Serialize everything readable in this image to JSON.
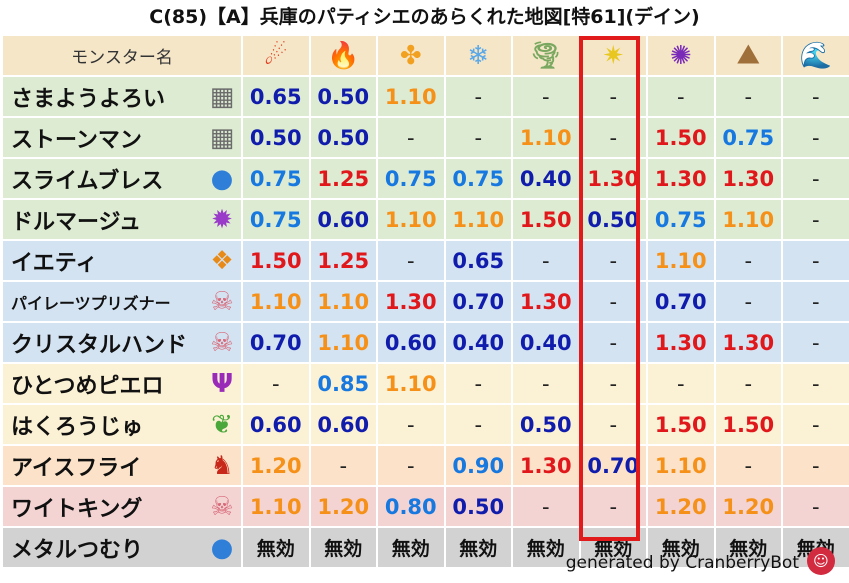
{
  "title": "C(85)【A】兵庫のパティシエのあらくれた地図[特61](デイン)",
  "header": {
    "name_label": "モンスター名",
    "elements": [
      {
        "icon": "fire-ball-icon",
        "glyph": "☄",
        "color": "#e23a1a"
      },
      {
        "icon": "flame-icon",
        "glyph": "🔥",
        "color": "#f05a1a"
      },
      {
        "icon": "wind-clover-icon",
        "glyph": "✤",
        "color": "#f2a020"
      },
      {
        "icon": "snowflake-icon",
        "glyph": "❄",
        "color": "#5aa8e8"
      },
      {
        "icon": "tornado-icon",
        "glyph": "🌪",
        "color": "#7aa860"
      },
      {
        "icon": "lightning-burst-icon",
        "glyph": "✷",
        "color": "#e8c820"
      },
      {
        "icon": "dark-swirl-icon",
        "glyph": "✺",
        "color": "#7a2ab8"
      },
      {
        "icon": "mountain-icon",
        "glyph": "⛰",
        "color": "#a0703a"
      },
      {
        "icon": "wave-icon",
        "glyph": "🌊",
        "color": "#2a78d8"
      }
    ]
  },
  "colors": {
    "red": "#e0171b",
    "orange": "#f59018",
    "blue": "#1778e0",
    "navy": "#101cab",
    "highlight": "#e11b1b"
  },
  "rows": [
    {
      "name": "さまようよろい",
      "bg": "green",
      "icon": "brick-wall-icon",
      "glyph": "▦",
      "icon_color": "#6b6b6b",
      "values": [
        {
          "v": "0.65",
          "c": "navy"
        },
        {
          "v": "0.50",
          "c": "navy"
        },
        {
          "v": "1.10",
          "c": "orange"
        },
        {
          "v": "-",
          "c": "dash"
        },
        {
          "v": "-",
          "c": "dash"
        },
        {
          "v": "-",
          "c": "dash"
        },
        {
          "v": "-",
          "c": "dash"
        },
        {
          "v": "-",
          "c": "dash"
        },
        {
          "v": "-",
          "c": "dash"
        }
      ]
    },
    {
      "name": "ストーンマン",
      "bg": "green",
      "icon": "brick-wall-icon",
      "glyph": "▦",
      "icon_color": "#6b6b6b",
      "values": [
        {
          "v": "0.50",
          "c": "navy"
        },
        {
          "v": "0.50",
          "c": "navy"
        },
        {
          "v": "-",
          "c": "dash"
        },
        {
          "v": "-",
          "c": "dash"
        },
        {
          "v": "1.10",
          "c": "orange"
        },
        {
          "v": "-",
          "c": "dash"
        },
        {
          "v": "1.50",
          "c": "red"
        },
        {
          "v": "0.75",
          "c": "blue"
        },
        {
          "v": "-",
          "c": "dash"
        }
      ]
    },
    {
      "name": "スライムブレス",
      "bg": "green",
      "icon": "slime-drop-icon",
      "glyph": "●",
      "icon_color": "#2f7fd8",
      "values": [
        {
          "v": "0.75",
          "c": "blue"
        },
        {
          "v": "1.25",
          "c": "red"
        },
        {
          "v": "0.75",
          "c": "blue"
        },
        {
          "v": "0.75",
          "c": "blue"
        },
        {
          "v": "0.40",
          "c": "navy"
        },
        {
          "v": "1.30",
          "c": "red"
        },
        {
          "v": "1.30",
          "c": "red"
        },
        {
          "v": "1.30",
          "c": "red"
        },
        {
          "v": "-",
          "c": "dash"
        }
      ]
    },
    {
      "name": "ドルマージュ",
      "bg": "green",
      "icon": "purple-splat-icon",
      "glyph": "✹",
      "icon_color": "#9a3ac8",
      "values": [
        {
          "v": "0.75",
          "c": "blue"
        },
        {
          "v": "0.60",
          "c": "navy"
        },
        {
          "v": "1.10",
          "c": "orange"
        },
        {
          "v": "1.10",
          "c": "orange"
        },
        {
          "v": "1.50",
          "c": "red"
        },
        {
          "v": "0.50",
          "c": "navy"
        },
        {
          "v": "0.75",
          "c": "blue"
        },
        {
          "v": "1.10",
          "c": "orange"
        },
        {
          "v": "-",
          "c": "dash"
        }
      ]
    },
    {
      "name": "イエティ",
      "bg": "blue",
      "icon": "paw-icon",
      "glyph": "❖",
      "icon_color": "#e88a18",
      "values": [
        {
          "v": "1.50",
          "c": "red"
        },
        {
          "v": "1.25",
          "c": "red"
        },
        {
          "v": "-",
          "c": "dash"
        },
        {
          "v": "0.65",
          "c": "navy"
        },
        {
          "v": "-",
          "c": "dash"
        },
        {
          "v": "-",
          "c": "dash"
        },
        {
          "v": "1.10",
          "c": "orange"
        },
        {
          "v": "-",
          "c": "dash"
        },
        {
          "v": "-",
          "c": "dash"
        }
      ]
    },
    {
      "name": "パイレーツプリズナー",
      "bg": "blue",
      "icon": "skull-icon",
      "glyph": "☠",
      "icon_color": "#d86878",
      "small": true,
      "values": [
        {
          "v": "1.10",
          "c": "orange"
        },
        {
          "v": "1.10",
          "c": "orange"
        },
        {
          "v": "1.30",
          "c": "red"
        },
        {
          "v": "0.70",
          "c": "navy"
        },
        {
          "v": "1.30",
          "c": "red"
        },
        {
          "v": "-",
          "c": "dash"
        },
        {
          "v": "0.70",
          "c": "navy"
        },
        {
          "v": "-",
          "c": "dash"
        },
        {
          "v": "-",
          "c": "dash"
        }
      ]
    },
    {
      "name": "クリスタルハンド",
      "bg": "blue",
      "icon": "skull-icon",
      "glyph": "☠",
      "icon_color": "#d86878",
      "values": [
        {
          "v": "0.70",
          "c": "navy"
        },
        {
          "v": "1.10",
          "c": "orange"
        },
        {
          "v": "0.60",
          "c": "navy"
        },
        {
          "v": "0.40",
          "c": "navy"
        },
        {
          "v": "0.40",
          "c": "navy"
        },
        {
          "v": "-",
          "c": "dash"
        },
        {
          "v": "1.30",
          "c": "red"
        },
        {
          "v": "1.30",
          "c": "red"
        },
        {
          "v": "-",
          "c": "dash"
        }
      ]
    },
    {
      "name": "ひとつめピエロ",
      "bg": "yellow",
      "icon": "trident-icon",
      "glyph": "Ψ",
      "icon_color": "#9a2ab8",
      "values": [
        {
          "v": "-",
          "c": "dash"
        },
        {
          "v": "0.85",
          "c": "blue"
        },
        {
          "v": "1.10",
          "c": "orange"
        },
        {
          "v": "-",
          "c": "dash"
        },
        {
          "v": "-",
          "c": "dash"
        },
        {
          "v": "-",
          "c": "dash"
        },
        {
          "v": "-",
          "c": "dash"
        },
        {
          "v": "-",
          "c": "dash"
        },
        {
          "v": "-",
          "c": "dash"
        }
      ]
    },
    {
      "name": "はくろうじゅ",
      "bg": "yellow",
      "icon": "leaf-icon",
      "glyph": "❦",
      "icon_color": "#4aa83a",
      "values": [
        {
          "v": "0.60",
          "c": "navy"
        },
        {
          "v": "0.60",
          "c": "navy"
        },
        {
          "v": "-",
          "c": "dash"
        },
        {
          "v": "-",
          "c": "dash"
        },
        {
          "v": "0.50",
          "c": "navy"
        },
        {
          "v": "-",
          "c": "dash"
        },
        {
          "v": "1.50",
          "c": "red"
        },
        {
          "v": "1.50",
          "c": "red"
        },
        {
          "v": "-",
          "c": "dash"
        }
      ]
    },
    {
      "name": "アイスフライ",
      "bg": "orange",
      "icon": "dragon-icon",
      "glyph": "♞",
      "icon_color": "#c8281a",
      "values": [
        {
          "v": "1.20",
          "c": "orange"
        },
        {
          "v": "-",
          "c": "dash"
        },
        {
          "v": "-",
          "c": "dash"
        },
        {
          "v": "0.90",
          "c": "blue"
        },
        {
          "v": "1.30",
          "c": "red"
        },
        {
          "v": "0.70",
          "c": "navy"
        },
        {
          "v": "1.10",
          "c": "orange"
        },
        {
          "v": "-",
          "c": "dash"
        },
        {
          "v": "-",
          "c": "dash"
        }
      ]
    },
    {
      "name": "ワイトキング",
      "bg": "pink",
      "icon": "skull-icon",
      "glyph": "☠",
      "icon_color": "#d86878",
      "values": [
        {
          "v": "1.10",
          "c": "orange"
        },
        {
          "v": "1.20",
          "c": "orange"
        },
        {
          "v": "0.80",
          "c": "blue"
        },
        {
          "v": "0.50",
          "c": "navy"
        },
        {
          "v": "-",
          "c": "dash"
        },
        {
          "v": "-",
          "c": "dash"
        },
        {
          "v": "1.20",
          "c": "orange"
        },
        {
          "v": "1.20",
          "c": "orange"
        },
        {
          "v": "-",
          "c": "dash"
        }
      ]
    },
    {
      "name": "メタルつむり",
      "bg": "gray",
      "icon": "slime-drop-icon",
      "glyph": "●",
      "icon_color": "#2f7fd8",
      "values": [
        {
          "v": "無効",
          "c": "black"
        },
        {
          "v": "無効",
          "c": "black"
        },
        {
          "v": "無効",
          "c": "black"
        },
        {
          "v": "無効",
          "c": "black"
        },
        {
          "v": "無効",
          "c": "black"
        },
        {
          "v": "無効",
          "c": "black"
        },
        {
          "v": "無効",
          "c": "black"
        },
        {
          "v": "無効",
          "c": "black"
        },
        {
          "v": "無効",
          "c": "black"
        }
      ]
    }
  ],
  "highlight_column": 5,
  "footer": {
    "text": "generated by CranberryBot",
    "icon": "cranberry-bot-icon"
  }
}
